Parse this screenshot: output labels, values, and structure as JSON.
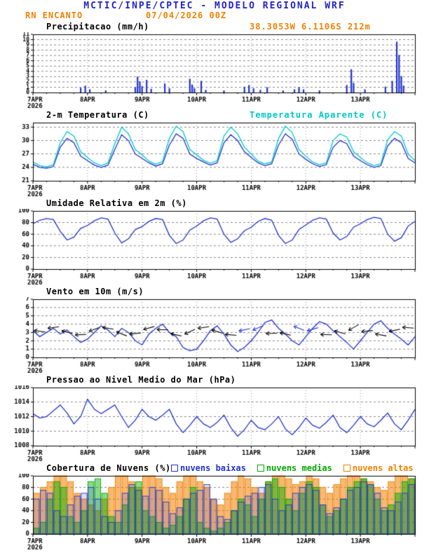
{
  "colors": {
    "title": "#2222cc",
    "orange": "#f08000"
  },
  "header": {
    "title": "MCTIC/INPE/CPTEC - MODELO REGIONAL WRF",
    "station": "RN ENCANTO",
    "run": "07/04/2026 00Z",
    "coords": "38.3053W 6.1106S 212m"
  },
  "x_axis": {
    "day_labels": [
      "7APR",
      "8APR",
      "9APR",
      "10APR",
      "11APR",
      "12APR",
      "13APR"
    ],
    "year": "2026",
    "total_hours": 168,
    "major_tick_hours": 24,
    "minor_tick_hours": 6
  },
  "chart_data": [
    {
      "type": "bar",
      "title": "Precipitacao (mm/h)",
      "ylabel": "mm/h",
      "ylim": [
        0,
        11
      ],
      "yticks": [
        0,
        1,
        2,
        3,
        4,
        5,
        6,
        7,
        8,
        9,
        10,
        11
      ],
      "bar_color": "#2233cc",
      "bars": [
        [
          21,
          0.9
        ],
        [
          23,
          1.3
        ],
        [
          25,
          0.6
        ],
        [
          32,
          0.4
        ],
        [
          45,
          1.0
        ],
        [
          46,
          3.0
        ],
        [
          47,
          2.1
        ],
        [
          48,
          1.2
        ],
        [
          50,
          2.4
        ],
        [
          52,
          0.7
        ],
        [
          58,
          1.7
        ],
        [
          60,
          0.8
        ],
        [
          69,
          2.6
        ],
        [
          70,
          1.5
        ],
        [
          71,
          0.8
        ],
        [
          74,
          2.2
        ],
        [
          76,
          0.5
        ],
        [
          84,
          0.4
        ],
        [
          93,
          1.1
        ],
        [
          95,
          1.4
        ],
        [
          97,
          0.8
        ],
        [
          100,
          0.5
        ],
        [
          103,
          1.0
        ],
        [
          110,
          0.4
        ],
        [
          115,
          0.6
        ],
        [
          117,
          1.0
        ],
        [
          119,
          0.6
        ],
        [
          126,
          0.4
        ],
        [
          138,
          1.4
        ],
        [
          140,
          4.4
        ],
        [
          141,
          1.8
        ],
        [
          146,
          0.6
        ],
        [
          155,
          1.1
        ],
        [
          158,
          2.2
        ],
        [
          160,
          9.6
        ],
        [
          161,
          7.1
        ],
        [
          162,
          3.1
        ],
        [
          163,
          1.3
        ]
      ]
    },
    {
      "type": "line",
      "title": "2-m Temperatura (C)",
      "ylim": [
        21,
        34
      ],
      "yticks": [
        21,
        24,
        27,
        30,
        33
      ],
      "step_hours": 3,
      "series": [
        {
          "name": "2-m Temperatura (C)",
          "color": "#2233cc",
          "values": [
            24.7,
            24.0,
            23.8,
            24.2,
            28.5,
            30.5,
            29.5,
            26.5,
            25.5,
            24.5,
            24.0,
            24.5,
            28.0,
            31.3,
            30.0,
            27.0,
            26.0,
            25.0,
            24.3,
            24.8,
            29.0,
            31.5,
            30.5,
            27.0,
            26.0,
            25.2,
            24.5,
            25.0,
            29.5,
            31.3,
            30.0,
            27.5,
            26.2,
            25.0,
            24.4,
            24.8,
            29.0,
            31.5,
            30.3,
            27.0,
            25.8,
            24.8,
            24.2,
            24.6,
            28.5,
            30.0,
            29.3,
            26.5,
            25.5,
            24.6,
            24.0,
            24.4,
            28.8,
            30.5,
            29.5,
            26.0,
            25.0
          ]
        },
        {
          "name": "Temperatura Aparente (C)",
          "color": "#00c8c8",
          "values": [
            25.2,
            24.4,
            24.1,
            24.6,
            29.5,
            32.0,
            31.0,
            27.5,
            26.2,
            25.0,
            24.4,
            25.0,
            29.3,
            33.0,
            31.5,
            28.0,
            26.8,
            25.4,
            24.7,
            25.3,
            30.5,
            33.2,
            32.0,
            28.0,
            26.8,
            25.6,
            24.9,
            25.5,
            31.0,
            33.0,
            31.5,
            28.5,
            27.0,
            25.4,
            24.8,
            25.2,
            30.5,
            33.2,
            31.8,
            28.0,
            26.5,
            25.2,
            24.6,
            25.0,
            30.0,
            31.5,
            30.8,
            27.5,
            26.2,
            25.0,
            24.4,
            24.8,
            30.2,
            32.0,
            31.0,
            27.0,
            25.5
          ]
        }
      ]
    },
    {
      "type": "line",
      "title": "Umidade Relativa em 2m (%)",
      "ylim": [
        0,
        100
      ],
      "yticks": [
        0,
        20,
        40,
        60,
        80,
        100
      ],
      "step_hours": 3,
      "series": [
        {
          "name": "Umidade Relativa em 2m (%)",
          "color": "#2233cc",
          "values": [
            78,
            84,
            87,
            85,
            65,
            50,
            55,
            70,
            75,
            83,
            88,
            86,
            62,
            45,
            52,
            68,
            73,
            82,
            87,
            85,
            58,
            44,
            50,
            67,
            74,
            83,
            88,
            86,
            60,
            46,
            52,
            66,
            72,
            82,
            87,
            84,
            58,
            44,
            50,
            68,
            76,
            84,
            88,
            86,
            62,
            50,
            56,
            72,
            78,
            85,
            89,
            87,
            60,
            48,
            54,
            74,
            82
          ]
        }
      ]
    },
    {
      "type": "line",
      "title": "Vento em 10m (m/s)",
      "ylim": [
        0,
        7
      ],
      "yticks": [
        0,
        1,
        2,
        3,
        4,
        5,
        6,
        7
      ],
      "step_hours": 3,
      "series": [
        {
          "name": "Vento em 10m (m/s)",
          "color": "#2233cc",
          "values": [
            3.2,
            2.5,
            3.0,
            3.5,
            2.8,
            3.3,
            2.5,
            1.8,
            2.2,
            3.0,
            3.8,
            3.3,
            2.5,
            3.5,
            3.0,
            2.0,
            1.5,
            2.8,
            3.5,
            4.0,
            3.0,
            2.5,
            1.2,
            0.8,
            1.0,
            2.0,
            3.2,
            3.8,
            2.8,
            1.5,
            0.7,
            1.2,
            2.0,
            3.0,
            4.2,
            4.5,
            3.5,
            2.8,
            2.0,
            1.5,
            2.5,
            3.5,
            4.3,
            4.0,
            3.2,
            2.5,
            1.8,
            1.0,
            2.0,
            3.0,
            4.0,
            4.4,
            3.5,
            2.8,
            2.2,
            1.5,
            2.5
          ]
        }
      ],
      "barbs": {
        "start_hour": 3,
        "step_hours": 6,
        "center_y": 3.15,
        "angles": [
          172,
          188,
          165,
          182,
          200,
          170,
          158,
          185,
          196,
          178,
          168,
          205,
          188,
          163,
          175,
          192,
          203,
          182,
          168,
          158,
          196,
          178,
          164,
          210,
          186,
          170,
          192,
          176
        ],
        "colors": [
          "#000000",
          "#000000",
          "#000000",
          "#000000",
          "#000000",
          "#000000",
          "#000000",
          "#000000",
          "#000000",
          "#000000",
          "#000000",
          "#000000",
          "#000000",
          "#000000",
          "#000000",
          "#2233cc",
          "#2233cc",
          "#000000",
          "#000000",
          "#2233cc",
          "#2233cc",
          "#000000",
          "#000000",
          "#000000",
          "#000000",
          "#000000",
          "#000000",
          "#000000"
        ]
      }
    },
    {
      "type": "line",
      "title": "Pressao ao Nivel Medio do Mar (hPa)",
      "ylim": [
        1008,
        1016
      ],
      "yticks": [
        1008,
        1010,
        1012,
        1014,
        1016
      ],
      "step_hours": 3,
      "series": [
        {
          "name": "Pressao ao Nivel Medio do Mar (hPa)",
          "color": "#2233cc",
          "values": [
            1012.4,
            1011.8,
            1012.0,
            1012.8,
            1013.6,
            1012.5,
            1011.0,
            1012.0,
            1014.4,
            1013.0,
            1012.4,
            1013.0,
            1013.6,
            1012.0,
            1010.5,
            1011.5,
            1013.0,
            1012.0,
            1011.5,
            1012.2,
            1013.0,
            1011.0,
            1009.8,
            1010.8,
            1012.0,
            1011.0,
            1010.5,
            1011.2,
            1012.2,
            1010.5,
            1009.3,
            1010.2,
            1011.5,
            1010.5,
            1010.2,
            1011.0,
            1012.0,
            1010.3,
            1009.5,
            1010.5,
            1011.8,
            1010.8,
            1010.4,
            1011.2,
            1012.2,
            1010.5,
            1009.8,
            1010.8,
            1012.0,
            1011.0,
            1010.6,
            1011.5,
            1012.5,
            1011.0,
            1010.2,
            1011.5,
            1013.0
          ]
        }
      ]
    },
    {
      "type": "bar",
      "title": "Cobertura de Nuvens (%)",
      "ylim": [
        0,
        100
      ],
      "yticks": [
        0,
        20,
        40,
        60,
        80,
        100
      ],
      "step_hours": 3,
      "legend": [
        {
          "label": "nuvens baixas",
          "color": "#2233cc"
        },
        {
          "label": "nuvens medias",
          "color": "#00aa00"
        },
        {
          "label": "nuvens altas",
          "color": "#f08000"
        }
      ],
      "series": [
        {
          "name": "nuvens altas",
          "color": "#f08000",
          "fill": "rgba(240,128,0,0.55)",
          "values": [
            70,
            80,
            90,
            100,
            100,
            90,
            70,
            60,
            50,
            40,
            60,
            80,
            100,
            100,
            90,
            80,
            100,
            100,
            95,
            80,
            70,
            90,
            100,
            100,
            90,
            80,
            60,
            50,
            70,
            90,
            100,
            95,
            80,
            70,
            90,
            100,
            100,
            95,
            85,
            90,
            100,
            95,
            80,
            70,
            85,
            95,
            100,
            100,
            95,
            90,
            80,
            75,
            90,
            100,
            100,
            95
          ]
        },
        {
          "name": "nuvens medias",
          "color": "#00aa00",
          "fill": "rgba(0,170,0,0.45)",
          "values": [
            10,
            20,
            60,
            90,
            80,
            30,
            20,
            40,
            90,
            95,
            70,
            30,
            20,
            50,
            80,
            90,
            40,
            30,
            20,
            10,
            15,
            30,
            60,
            80,
            20,
            10,
            5,
            10,
            20,
            40,
            60,
            50,
            30,
            60,
            90,
            95,
            80,
            60,
            40,
            70,
            90,
            80,
            50,
            30,
            40,
            60,
            80,
            90,
            95,
            85,
            60,
            40,
            50,
            70,
            90,
            95
          ]
        },
        {
          "name": "nuvens baixas",
          "color": "#2233cc",
          "fill": "rgba(34,51,204,0.15)",
          "values": [
            60,
            75,
            70,
            40,
            30,
            50,
            65,
            70,
            80,
            60,
            30,
            20,
            40,
            70,
            85,
            75,
            65,
            80,
            75,
            55,
            35,
            45,
            60,
            70,
            75,
            85,
            60,
            30,
            25,
            40,
            55,
            65,
            70,
            80,
            85,
            60,
            40,
            50,
            70,
            80,
            85,
            75,
            50,
            35,
            45,
            60,
            75,
            80,
            90,
            85,
            70,
            45,
            40,
            55,
            70,
            85
          ]
        }
      ]
    }
  ]
}
